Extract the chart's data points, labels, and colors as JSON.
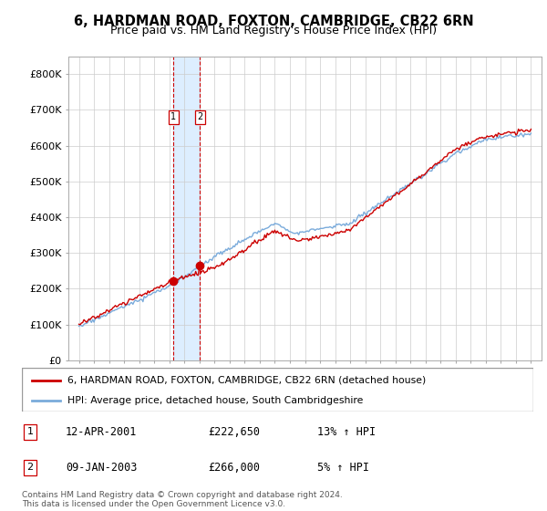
{
  "title": "6, HARDMAN ROAD, FOXTON, CAMBRIDGE, CB22 6RN",
  "subtitle": "Price paid vs. HM Land Registry's House Price Index (HPI)",
  "legend_line1": "6, HARDMAN ROAD, FOXTON, CAMBRIDGE, CB22 6RN (detached house)",
  "legend_line2": "HPI: Average price, detached house, South Cambridgeshire",
  "transaction1_date": "12-APR-2001",
  "transaction1_price": "£222,650",
  "transaction1_hpi": "13% ↑ HPI",
  "transaction2_date": "09-JAN-2003",
  "transaction2_price": "£266,000",
  "transaction2_hpi": "5% ↑ HPI",
  "footer": "Contains HM Land Registry data © Crown copyright and database right 2024.\nThis data is licensed under the Open Government Licence v3.0.",
  "hpi_color": "#7aabdb",
  "price_color": "#cc0000",
  "marker_color": "#cc0000",
  "background_color": "#ffffff",
  "grid_color": "#cccccc",
  "highlight_color": "#ddeeff",
  "ylim": [
    0,
    850000
  ],
  "yticks": [
    0,
    100000,
    200000,
    300000,
    400000,
    500000,
    600000,
    700000,
    800000
  ],
  "ytick_labels": [
    "£0",
    "£100K",
    "£200K",
    "£300K",
    "£400K",
    "£500K",
    "£600K",
    "£700K",
    "£800K"
  ],
  "t1_year": 2001.278,
  "t2_year": 2003.025,
  "t1_price": 222650,
  "t2_price": 266000
}
